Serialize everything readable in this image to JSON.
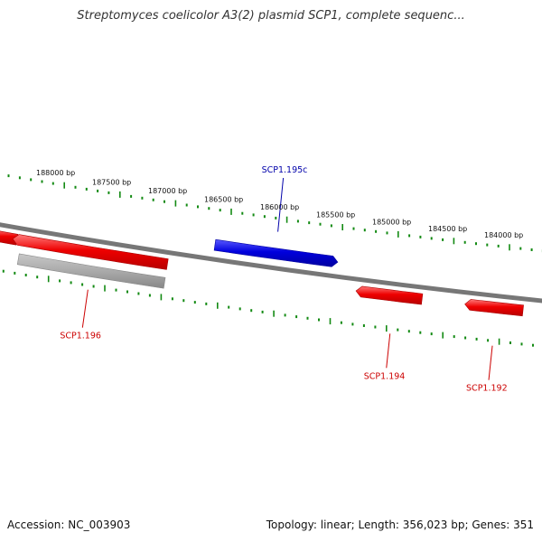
{
  "title": "Streptomyces coelicolor A3(2) plasmid SCP1, complete sequenc...",
  "footer": {
    "accession": "Accession: NC_003903",
    "stats": "Topology: linear; Length: 356,023 bp; Genes: 351"
  },
  "colors": {
    "forward_gene": "#0000dd",
    "reverse_gene": "#ee0000",
    "other_feature": "#aaaaaa",
    "backbone": "#777777",
    "ticks": "#138a13",
    "forward_label": "#0000aa",
    "reverse_label": "#cc0000"
  },
  "ticks": [
    {
      "bp": 188000,
      "label": "188000 bp"
    },
    {
      "bp": 187500,
      "label": "187500 bp"
    },
    {
      "bp": 187000,
      "label": "187000 bp"
    },
    {
      "bp": 186500,
      "label": "186500 bp"
    },
    {
      "bp": 186000,
      "label": "186000 bp"
    },
    {
      "bp": 185500,
      "label": "185500 bp"
    },
    {
      "bp": 185000,
      "label": "185000 bp"
    },
    {
      "bp": 184500,
      "label": "184500 bp"
    },
    {
      "bp": 184000,
      "label": "184000 bp"
    }
  ],
  "genes": [
    {
      "name": "SCP1.195c",
      "strand": "forward",
      "label_side": "above",
      "start_bp": 186600,
      "end_bp": 185550
    },
    {
      "name": "SCP1.196",
      "strand": "reverse",
      "label_side": "below",
      "start_bp": 188320,
      "end_bp": 186990
    },
    {
      "name": "SCP1.194",
      "strand": "reverse",
      "label_side": "below",
      "start_bp": 185260,
      "end_bp": 184720
    },
    {
      "name": "SCP1.192",
      "strand": "reverse",
      "label_side": "below",
      "start_bp": 184290,
      "end_bp": 183820
    }
  ],
  "unlabeled_features": [
    {
      "type": "reverse_gene",
      "start_bp": 188600,
      "end_bp": 188330
    },
    {
      "type": "other",
      "start_bp": 188290,
      "end_bp": 186990
    }
  ]
}
